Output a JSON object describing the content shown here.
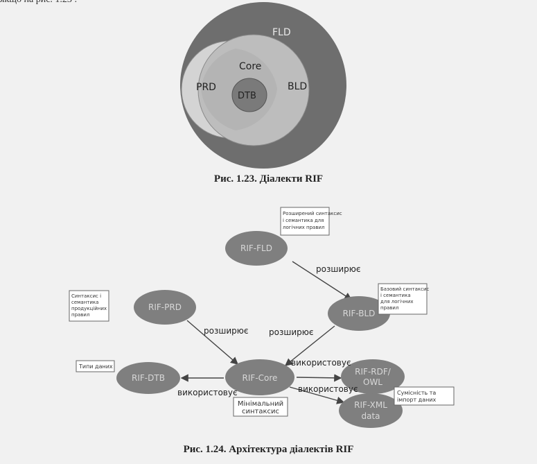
{
  "top_text": "якщо на рис. 1.23 :",
  "figure1": {
    "caption": "Рис. 1.23. Діалекти RIF",
    "labels": {
      "fld": "FLD",
      "core": "Core",
      "prd": "PRD",
      "bld": "BLD",
      "dtb": "DTB"
    }
  },
  "figure2": {
    "caption": "Рис. 1.24. Архітектура діалектів RIF",
    "nodes": {
      "fld": "RIF-FLD",
      "prd": "RIF-PRD",
      "bld": "RIF-BLD",
      "core": "RIF-Core",
      "dtb": "RIF-DTB",
      "rdf_line1": "RIF-RDF/",
      "rdf_line2": "OWL",
      "xml_line1": "RIF-XML",
      "xml_line2": "data"
    },
    "edges": {
      "fld_bld": "розширює",
      "prd_core": "розширює",
      "bld_core": "розширює",
      "core_bld": "використовує",
      "core_dtb": "використовує",
      "core_rdf": "використовує"
    },
    "notes": {
      "fld_line1": "Розширений синтаксис",
      "fld_line2": "і семантика для",
      "fld_line3": "логічних правил",
      "prd_line1": "Синтаксис і",
      "prd_line2": "семантика",
      "prd_line3": "продукційних",
      "prd_line4": "правил",
      "bld_line1": "Базовий синтаксис",
      "bld_line2": "і семантика",
      "bld_line3": "для логічних",
      "bld_line4": "правил",
      "dtb": "Типи даних",
      "core_line1": "Мінімальний",
      "core_line2": "синтаксис",
      "xml_line1": "Сумісність та",
      "xml_line2": "імпорт даних"
    }
  }
}
